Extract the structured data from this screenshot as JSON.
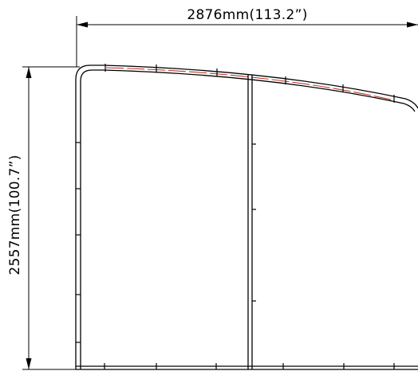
{
  "drawing": {
    "type": "technical-elevation",
    "width_dimension_label": "2876mm(113.2”)",
    "height_dimension_label": "2557mm(100.7”)",
    "colors": {
      "line": "#000000",
      "accent": "#c0392b",
      "background": "#ffffff"
    }
  }
}
